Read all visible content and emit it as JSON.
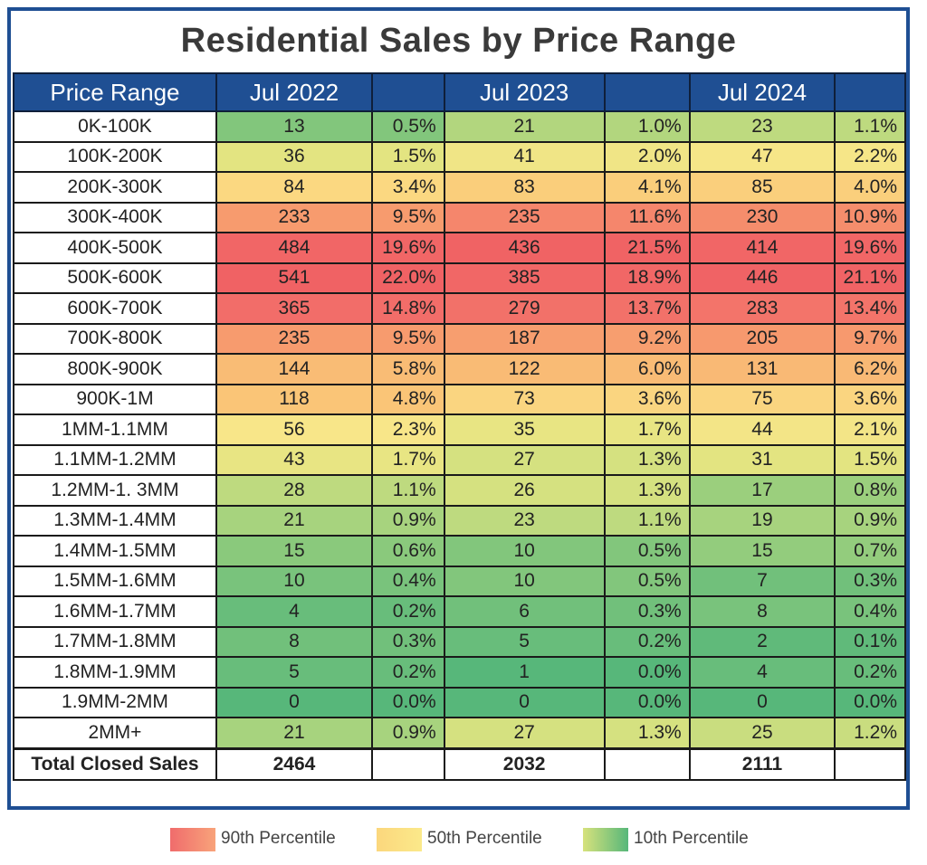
{
  "title": "Residential Sales by Price Range",
  "headers": {
    "range": "Price Range",
    "y1": "Jul 2022",
    "y2": "Jul 2023",
    "y3": "Jul 2024"
  },
  "total_label": "Total Closed Sales",
  "totals": [
    "2464",
    "2032",
    "2111"
  ],
  "legend": [
    {
      "label": "90th Percentile",
      "from": "#f06c6c",
      "to": "#f8a37a"
    },
    {
      "label": "50th Percentile",
      "from": "#fbd77d",
      "to": "#fbe98a"
    },
    {
      "label": "10th Percentile",
      "from": "#d7e27c",
      "to": "#57b77a"
    }
  ],
  "chart_data": {
    "type": "table",
    "title": "Residential Sales by Price Range",
    "columns": [
      "Price Range",
      "Jul 2022",
      "",
      "Jul 2023",
      "",
      "Jul 2024",
      ""
    ],
    "rows": [
      {
        "range": "0K-100K",
        "y2022": [
          13,
          "0.5%"
        ],
        "y2023": [
          21,
          "1.0%"
        ],
        "y2024": [
          23,
          "1.1%"
        ]
      },
      {
        "range": "100K-200K",
        "y2022": [
          36,
          "1.5%"
        ],
        "y2023": [
          41,
          "2.0%"
        ],
        "y2024": [
          47,
          "2.2%"
        ]
      },
      {
        "range": "200K-300K",
        "y2022": [
          84,
          "3.4%"
        ],
        "y2023": [
          83,
          "4.1%"
        ],
        "y2024": [
          85,
          "4.0%"
        ]
      },
      {
        "range": "300K-400K",
        "y2022": [
          233,
          "9.5%"
        ],
        "y2023": [
          235,
          "11.6%"
        ],
        "y2024": [
          230,
          "10.9%"
        ]
      },
      {
        "range": "400K-500K",
        "y2022": [
          484,
          "19.6%"
        ],
        "y2023": [
          436,
          "21.5%"
        ],
        "y2024": [
          414,
          "19.6%"
        ]
      },
      {
        "range": "500K-600K",
        "y2022": [
          541,
          "22.0%"
        ],
        "y2023": [
          385,
          "18.9%"
        ],
        "y2024": [
          446,
          "21.1%"
        ]
      },
      {
        "range": "600K-700K",
        "y2022": [
          365,
          "14.8%"
        ],
        "y2023": [
          279,
          "13.7%"
        ],
        "y2024": [
          283,
          "13.4%"
        ]
      },
      {
        "range": "700K-800K",
        "y2022": [
          235,
          "9.5%"
        ],
        "y2023": [
          187,
          "9.2%"
        ],
        "y2024": [
          205,
          "9.7%"
        ]
      },
      {
        "range": "800K-900K",
        "y2022": [
          144,
          "5.8%"
        ],
        "y2023": [
          122,
          "6.0%"
        ],
        "y2024": [
          131,
          "6.2%"
        ]
      },
      {
        "range": "900K-1M",
        "y2022": [
          118,
          "4.8%"
        ],
        "y2023": [
          73,
          "3.6%"
        ],
        "y2024": [
          75,
          "3.6%"
        ]
      },
      {
        "range": "1MM-1.1MM",
        "y2022": [
          56,
          "2.3%"
        ],
        "y2023": [
          35,
          "1.7%"
        ],
        "y2024": [
          44,
          "2.1%"
        ]
      },
      {
        "range": "1.1MM-1.2MM",
        "y2022": [
          43,
          "1.7%"
        ],
        "y2023": [
          27,
          "1.3%"
        ],
        "y2024": [
          31,
          "1.5%"
        ]
      },
      {
        "range": "1.2MM-1. 3MM",
        "y2022": [
          28,
          "1.1%"
        ],
        "y2023": [
          26,
          "1.3%"
        ],
        "y2024": [
          17,
          "0.8%"
        ]
      },
      {
        "range": "1.3MM-1.4MM",
        "y2022": [
          21,
          "0.9%"
        ],
        "y2023": [
          23,
          "1.1%"
        ],
        "y2024": [
          19,
          "0.9%"
        ]
      },
      {
        "range": "1.4MM-1.5MM",
        "y2022": [
          15,
          "0.6%"
        ],
        "y2023": [
          10,
          "0.5%"
        ],
        "y2024": [
          15,
          "0.7%"
        ]
      },
      {
        "range": "1.5MM-1.6MM",
        "y2022": [
          10,
          "0.4%"
        ],
        "y2023": [
          10,
          "0.5%"
        ],
        "y2024": [
          7,
          "0.3%"
        ]
      },
      {
        "range": "1.6MM-1.7MM",
        "y2022": [
          4,
          "0.2%"
        ],
        "y2023": [
          6,
          "0.3%"
        ],
        "y2024": [
          8,
          "0.4%"
        ]
      },
      {
        "range": "1.7MM-1.8MM",
        "y2022": [
          8,
          "0.3%"
        ],
        "y2023": [
          5,
          "0.2%"
        ],
        "y2024": [
          2,
          "0.1%"
        ]
      },
      {
        "range": "1.8MM-1.9MM",
        "y2022": [
          5,
          "0.2%"
        ],
        "y2023": [
          1,
          "0.0%"
        ],
        "y2024": [
          4,
          "0.2%"
        ]
      },
      {
        "range": "1.9MM-2MM",
        "y2022": [
          0,
          "0.0%"
        ],
        "y2023": [
          0,
          "0.0%"
        ],
        "y2024": [
          0,
          "0.0%"
        ]
      },
      {
        "range": "2MM+",
        "y2022": [
          21,
          "0.9%"
        ],
        "y2023": [
          27,
          "1.3%"
        ],
        "y2024": [
          25,
          "1.2%"
        ]
      }
    ]
  }
}
